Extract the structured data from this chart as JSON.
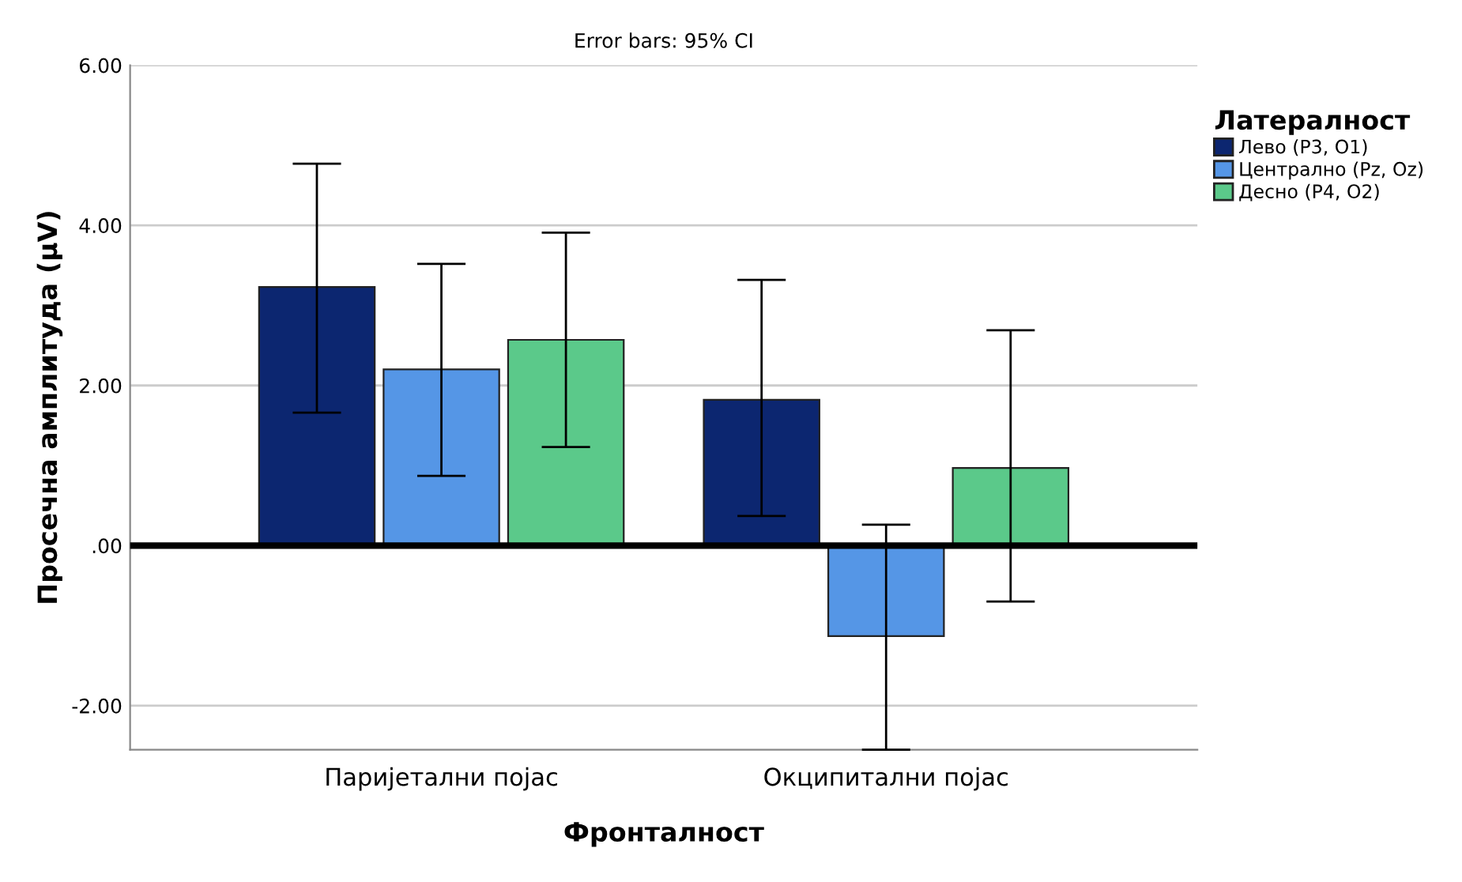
{
  "chart_data": {
    "type": "bar",
    "subtitle": "Error bars: 95% CI",
    "xlabel": "Фронталност",
    "ylabel": "Просечна амплитуда (μV)",
    "legend_title": "Латералност",
    "categories": [
      "Паријетални појас",
      "Окципитални појас"
    ],
    "series": [
      {
        "name": "Лево (P3, O1)",
        "color": "#0c2670",
        "values": [
          3.23,
          1.82
        ],
        "errors": [
          [
            1.66,
            4.77
          ],
          [
            0.37,
            3.32
          ]
        ]
      },
      {
        "name": "Централно (Pz, Oz)",
        "color": "#5596e6",
        "values": [
          2.2,
          -1.13
        ],
        "errors": [
          [
            0.87,
            3.52
          ],
          [
            -2.55,
            0.26
          ]
        ]
      },
      {
        "name": "Десно (P4, O2)",
        "color": "#5bc98a",
        "values": [
          2.57,
          0.97
        ],
        "errors": [
          [
            1.23,
            3.91
          ],
          [
            -0.7,
            2.69
          ]
        ]
      }
    ],
    "ylim": [
      -2.55,
      6
    ],
    "yticks": [
      {
        "value": -2,
        "label": "-2.00"
      },
      {
        "value": 0,
        "label": ".00"
      },
      {
        "value": 2,
        "label": "2.00"
      },
      {
        "value": 4,
        "label": "4.00"
      },
      {
        "value": 6,
        "label": "6.00"
      }
    ],
    "ref_lines": [
      {
        "axis": "y",
        "value": 0,
        "color": "#000000"
      }
    ],
    "grid": "y",
    "legend": "right"
  }
}
